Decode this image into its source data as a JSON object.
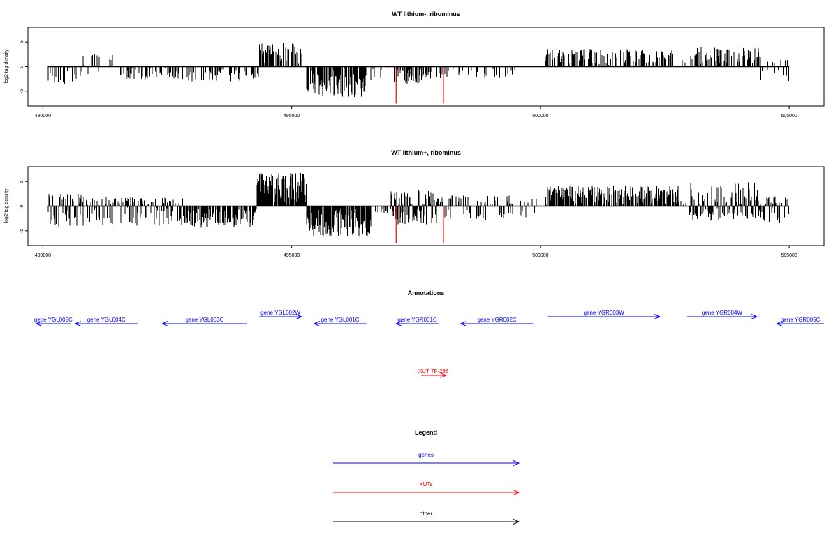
{
  "chart_data": [
    {
      "type": "bar",
      "title": "WT lithium-, ribominus",
      "ylabel": "log2 tag density",
      "xlim": [
        489700,
        505700
      ],
      "ylim": [
        -8,
        8
      ],
      "xticks": [
        490000,
        495000,
        500000,
        505000
      ],
      "yticks": [
        -5,
        0,
        5
      ],
      "baseline": 0,
      "bar_color": "#000000",
      "segments": [
        {
          "x0": 490100,
          "x1": 490700,
          "mode": "neg",
          "amp": 3.5,
          "p": 0.32
        },
        {
          "x0": 490700,
          "x1": 491500,
          "mode": "mix",
          "amp": 2.6,
          "ampNeg": 2.6,
          "p": 0.28
        },
        {
          "x0": 491500,
          "x1": 492900,
          "mode": "neg",
          "amp": 2.6,
          "p": 0.3
        },
        {
          "x0": 492900,
          "x1": 494350,
          "mode": "neg",
          "amp": 3.0,
          "p": 0.3
        },
        {
          "x0": 494350,
          "x1": 495200,
          "mode": "pos",
          "amp": 4.8,
          "p": 0.6
        },
        {
          "x0": 495300,
          "x1": 496500,
          "mode": "neg",
          "amp": 6.2,
          "p": 0.75
        },
        {
          "x0": 496550,
          "x1": 497000,
          "mode": "neg",
          "amp": 2.8,
          "p": 0.18
        },
        {
          "x0": 497050,
          "x1": 497850,
          "mode": "neg",
          "amp": 3.5,
          "p": 0.55
        },
        {
          "x0": 497850,
          "x1": 499500,
          "mode": "neg",
          "amp": 2.4,
          "p": 0.15
        },
        {
          "x0": 499600,
          "x1": 500100,
          "mode": "pos",
          "amp": 1.0,
          "p": 0.04
        },
        {
          "x0": 500100,
          "x1": 502700,
          "mode": "pos",
          "amp": 3.6,
          "p": 0.42
        },
        {
          "x0": 502700,
          "x1": 503000,
          "mode": "pos",
          "amp": 1.5,
          "p": 0.12
        },
        {
          "x0": 503000,
          "x1": 504400,
          "mode": "pos",
          "amp": 4.2,
          "p": 0.55
        },
        {
          "x0": 504400,
          "x1": 505000,
          "mode": "mix",
          "amp": 2.4,
          "ampNeg": 3.5,
          "p": 0.3
        }
      ],
      "highlights": [
        {
          "x": 497100,
          "y": -7.5,
          "color": "#ff0000"
        },
        {
          "x": 498050,
          "y": -7.5,
          "color": "#ff0000"
        }
      ]
    },
    {
      "type": "bar",
      "title": "WT lithium+, ribominus",
      "ylabel": "log2 tag density",
      "xlim": [
        489700,
        505700
      ],
      "ylim": [
        -8,
        8
      ],
      "xticks": [
        490000,
        495000,
        500000,
        505000
      ],
      "yticks": [
        -5,
        0,
        5
      ],
      "baseline": 0,
      "bar_color": "#000000",
      "segments": [
        {
          "x0": 490100,
          "x1": 490800,
          "mode": "mix",
          "amp": 2.8,
          "ampNeg": 4.2,
          "p": 0.6
        },
        {
          "x0": 490800,
          "x1": 492900,
          "mode": "mix",
          "amp": 1.8,
          "ampNeg": 4.0,
          "p": 0.65
        },
        {
          "x0": 492900,
          "x1": 494300,
          "mode": "neg",
          "amp": 4.5,
          "p": 0.7
        },
        {
          "x0": 494300,
          "x1": 495300,
          "mode": "pos",
          "amp": 6.8,
          "p": 0.95
        },
        {
          "x0": 495300,
          "x1": 496600,
          "mode": "neg",
          "amp": 6.2,
          "p": 0.95
        },
        {
          "x0": 496600,
          "x1": 497000,
          "mode": "neg",
          "amp": 1.5,
          "p": 0.15
        },
        {
          "x0": 497000,
          "x1": 498000,
          "mode": "mix",
          "amp": 3.3,
          "ampNeg": 3.8,
          "p": 0.8
        },
        {
          "x0": 498000,
          "x1": 500000,
          "mode": "mix",
          "amp": 2.2,
          "ampNeg": 3.0,
          "p": 0.45
        },
        {
          "x0": 500100,
          "x1": 502800,
          "mode": "pos",
          "amp": 4.2,
          "p": 0.75
        },
        {
          "x0": 502800,
          "x1": 503000,
          "mode": "pos",
          "amp": 1.5,
          "p": 0.2
        },
        {
          "x0": 503000,
          "x1": 504400,
          "mode": "mix",
          "amp": 4.8,
          "ampNeg": 3.0,
          "p": 0.85
        },
        {
          "x0": 504400,
          "x1": 505000,
          "mode": "mix",
          "amp": 2.0,
          "ampNeg": 3.5,
          "p": 0.5
        }
      ],
      "highlights": [
        {
          "x": 497100,
          "y": -7.5,
          "color": "#ff0000"
        },
        {
          "x": 498050,
          "y": -7.5,
          "color": "#ff0000"
        }
      ]
    }
  ],
  "annotations": {
    "title": "Annotations",
    "xlim": [
      489700,
      505700
    ],
    "features": [
      {
        "label": "gene YGL005C",
        "start": 489700,
        "end": 490550,
        "strand": "-",
        "color": "#0000ff",
        "row": 0
      },
      {
        "label": "gene YGL004C",
        "start": 490650,
        "end": 491900,
        "strand": "-",
        "color": "#0000ff",
        "row": 0
      },
      {
        "label": "gene YGL003C",
        "start": 492400,
        "end": 494100,
        "strand": "-",
        "color": "#0000ff",
        "row": 0
      },
      {
        "label": "gene YGL002W",
        "start": 494350,
        "end": 495200,
        "strand": "+",
        "color": "#0000ff",
        "row": 1
      },
      {
        "label": "gene YGL001C",
        "start": 495450,
        "end": 496500,
        "strand": "-",
        "color": "#0000ff",
        "row": 0
      },
      {
        "label": "gene YGR001C",
        "start": 497100,
        "end": 497950,
        "strand": "-",
        "color": "#0000ff",
        "row": 0
      },
      {
        "label": "gene YGR002C",
        "start": 498400,
        "end": 499850,
        "strand": "-",
        "color": "#0000ff",
        "row": 0
      },
      {
        "label": "gene YGR003W",
        "start": 500150,
        "end": 502400,
        "strand": "+",
        "color": "#0000ff",
        "row": 1
      },
      {
        "label": "gene YGR004W",
        "start": 502950,
        "end": 504350,
        "strand": "+",
        "color": "#0000ff",
        "row": 1
      },
      {
        "label": "gene YGR005C",
        "start": 504750,
        "end": 505700,
        "strand": "-",
        "color": "#0000ff",
        "row": 0
      },
      {
        "label": "XUT 7F-236",
        "start": 497600,
        "end": 498100,
        "strand": "+",
        "color": "#ff0000",
        "row": 2
      }
    ]
  },
  "legend": {
    "title": "Legend",
    "items": [
      {
        "label": "genes",
        "color": "#0000ff"
      },
      {
        "label": "XUTs",
        "color": "#ff0000"
      },
      {
        "label": "other",
        "color": "#000000"
      }
    ]
  }
}
